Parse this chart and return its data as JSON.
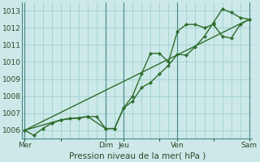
{
  "xlabel": "Pression niveau de la mer( hPa )",
  "bg_color": "#cce8e8",
  "grid_color": "#99cccc",
  "line_color": "#2d6e2d",
  "ylim": [
    1005.5,
    1013.5
  ],
  "yticks": [
    1006,
    1007,
    1008,
    1009,
    1010,
    1011,
    1012,
    1013
  ],
  "xtick_labels": [
    "Mer",
    "",
    "Dim",
    "Jeu",
    "",
    "Ven",
    "",
    "Sam"
  ],
  "xtick_pos": [
    0,
    4,
    9,
    11,
    15,
    17,
    21,
    25
  ],
  "vlines": [
    0,
    9,
    11,
    17,
    25
  ],
  "series1_x": [
    0,
    1,
    2,
    3,
    4,
    5,
    6,
    7,
    8,
    9,
    10,
    11,
    12,
    13,
    14,
    15,
    16,
    17,
    18,
    19,
    20,
    21,
    22,
    23,
    24,
    25
  ],
  "series1_y": [
    1006.0,
    1005.7,
    1006.1,
    1006.4,
    1006.6,
    1006.7,
    1006.7,
    1006.8,
    1006.8,
    1006.1,
    1006.1,
    1007.3,
    1007.7,
    1008.5,
    1008.8,
    1009.3,
    1009.8,
    1010.45,
    1010.4,
    1010.9,
    1011.5,
    1012.3,
    1013.1,
    1012.9,
    1012.6,
    1012.5
  ],
  "series2_x": [
    0,
    4,
    7,
    9,
    10,
    11,
    12,
    13,
    14,
    15,
    16,
    17,
    18,
    19,
    20,
    21,
    22,
    23,
    24,
    25
  ],
  "series2_y": [
    1006.0,
    1006.6,
    1006.8,
    1006.1,
    1006.1,
    1007.3,
    1008.0,
    1009.3,
    1010.5,
    1010.5,
    1010.0,
    1011.8,
    1012.2,
    1012.2,
    1012.0,
    1012.2,
    1011.5,
    1011.4,
    1012.2,
    1012.5
  ],
  "series3_x": [
    0,
    25
  ],
  "series3_y": [
    1006.0,
    1012.5
  ],
  "linewidth": 1.0
}
